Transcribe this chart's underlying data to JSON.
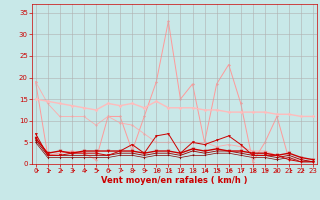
{
  "bg_color": "#c8e8e8",
  "grid_color": "#b0b0b0",
  "xlabel": "Vent moyen/en rafales ( km/h )",
  "xlabel_color": "#cc0000",
  "xlabel_fontsize": 6,
  "xticks": [
    0,
    1,
    2,
    3,
    4,
    5,
    6,
    7,
    8,
    9,
    10,
    11,
    12,
    13,
    14,
    15,
    16,
    17,
    18,
    19,
    20,
    21,
    22,
    23
  ],
  "yticks": [
    0,
    5,
    10,
    15,
    20,
    25,
    30,
    35
  ],
  "xlim": [
    -0.3,
    23.3
  ],
  "ylim": [
    0,
    37
  ],
  "tick_color": "#cc0000",
  "tick_fontsize": 5,
  "series": [
    {
      "x": [
        0,
        1,
        2,
        3,
        4,
        5,
        6,
        7,
        8,
        9,
        10,
        11,
        12,
        13,
        14,
        15,
        16,
        17,
        18,
        19,
        20,
        21,
        22,
        23
      ],
      "y": [
        19,
        2,
        2.5,
        3,
        2.5,
        1,
        11,
        11,
        3,
        11,
        19,
        33,
        15,
        18.5,
        5,
        18.5,
        23,
        14,
        0.5,
        5,
        11,
        1,
        1,
        0.5
      ],
      "color": "#ff9999",
      "lw": 0.7,
      "marker": "D",
      "ms": 1.5,
      "zorder": 1
    },
    {
      "x": [
        0,
        1,
        2,
        3,
        4,
        5,
        6,
        7,
        8,
        9,
        10,
        11,
        12,
        13,
        14,
        15,
        16,
        17,
        18,
        19,
        20,
        21,
        22,
        23
      ],
      "y": [
        15,
        14.5,
        14,
        13.5,
        13,
        12.5,
        14,
        13.5,
        14,
        13,
        14.5,
        13,
        13,
        13,
        12.5,
        12.5,
        12,
        12,
        12,
        12,
        11.5,
        11.5,
        11,
        11
      ],
      "color": "#ffbbbb",
      "lw": 1.0,
      "marker": "D",
      "ms": 1.8,
      "zorder": 2
    },
    {
      "x": [
        0,
        1,
        2,
        3,
        4,
        5,
        6,
        7,
        8,
        9,
        10,
        11,
        12,
        13,
        14,
        15,
        16,
        17,
        18,
        19,
        20,
        21,
        22,
        23
      ],
      "y": [
        19,
        14,
        11,
        11,
        11,
        9,
        11,
        9.5,
        9,
        7,
        5,
        5,
        5,
        5,
        5,
        4,
        4.5,
        4,
        3,
        3,
        2,
        1.5,
        1,
        0.5
      ],
      "color": "#ffaaaa",
      "lw": 0.6,
      "marker": "D",
      "ms": 1.5,
      "zorder": 1
    },
    {
      "x": [
        0,
        1,
        2,
        3,
        4,
        5,
        6,
        7,
        8,
        9,
        10,
        11,
        12,
        13,
        14,
        15,
        16,
        17,
        18,
        19,
        20,
        21,
        22,
        23
      ],
      "y": [
        7,
        2,
        2,
        2.5,
        2.5,
        2.5,
        2,
        3,
        4.5,
        2.5,
        6.5,
        7,
        2.5,
        5,
        4.5,
        5.5,
        6.5,
        4.5,
        2,
        2,
        2,
        1,
        0.5,
        0.5
      ],
      "color": "#cc0000",
      "lw": 0.7,
      "marker": "v",
      "ms": 2.0,
      "zorder": 4
    },
    {
      "x": [
        0,
        1,
        2,
        3,
        4,
        5,
        6,
        7,
        8,
        9,
        10,
        11,
        12,
        13,
        14,
        15,
        16,
        17,
        18,
        19,
        20,
        21,
        22,
        23
      ],
      "y": [
        6,
        2.5,
        3,
        2.5,
        3,
        3,
        3,
        3,
        3,
        2.5,
        3,
        3,
        2.5,
        3.5,
        3,
        3.5,
        3,
        3,
        2.5,
        2.5,
        2,
        2.5,
        1.5,
        1
      ],
      "color": "#cc0000",
      "lw": 1.0,
      "marker": "v",
      "ms": 2.5,
      "zorder": 4
    },
    {
      "x": [
        0,
        1,
        2,
        3,
        4,
        5,
        6,
        7,
        8,
        9,
        10,
        11,
        12,
        13,
        14,
        15,
        16,
        17,
        18,
        19,
        20,
        21,
        22,
        23
      ],
      "y": [
        5.5,
        2,
        2,
        2,
        2,
        2,
        2,
        2.5,
        2.5,
        2,
        2.5,
        2.5,
        2,
        3,
        2.5,
        3,
        3,
        2.5,
        2,
        2,
        1.5,
        2,
        1,
        0.5
      ],
      "color": "#990000",
      "lw": 0.6,
      "marker": "v",
      "ms": 1.8,
      "zorder": 3
    },
    {
      "x": [
        0,
        1,
        2,
        3,
        4,
        5,
        6,
        7,
        8,
        9,
        10,
        11,
        12,
        13,
        14,
        15,
        16,
        17,
        18,
        19,
        20,
        21,
        22,
        23
      ],
      "y": [
        5,
        1.5,
        1.5,
        1.5,
        1.5,
        1.5,
        1.5,
        2,
        2,
        1.5,
        2,
        2,
        1.5,
        2,
        2,
        2.5,
        2.5,
        2,
        1.5,
        1.5,
        1,
        1.5,
        0.5,
        0.5
      ],
      "color": "#880000",
      "lw": 0.5,
      "marker": "v",
      "ms": 1.5,
      "zorder": 3
    }
  ]
}
